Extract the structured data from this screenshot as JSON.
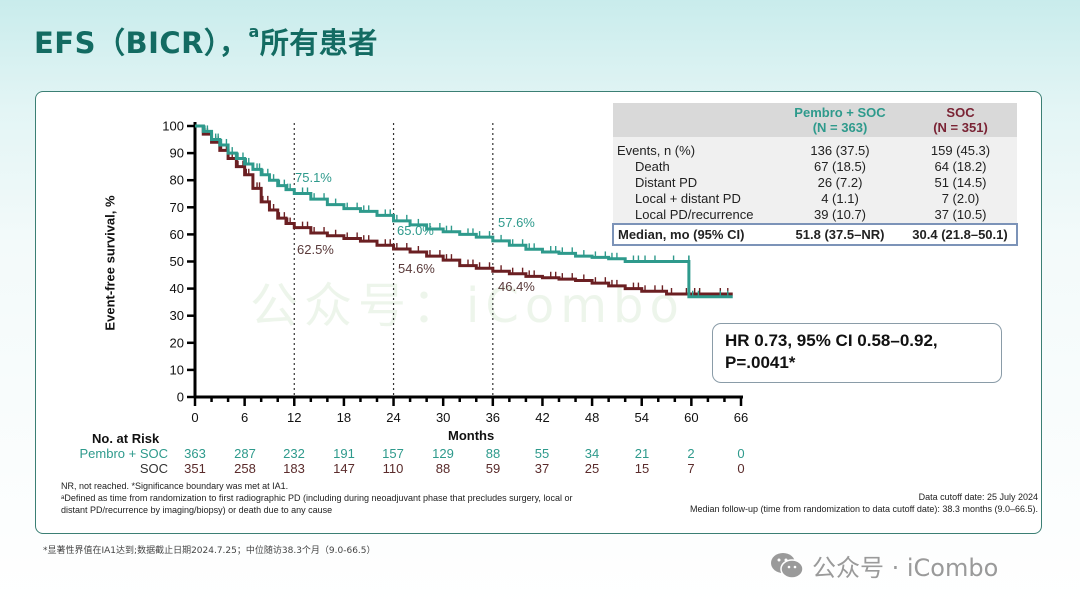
{
  "header": {
    "title_main": "EFS（BICR），",
    "title_sup": "a",
    "title_cn": "所有患者"
  },
  "colors": {
    "pembro": "#2e9a8c",
    "soc": "#6b1f22",
    "title": "#136b62",
    "panel_border": "#3b7f74"
  },
  "chart_data": {
    "type": "line",
    "subtype": "kaplan-meier",
    "title": "EFS (BICR), all patients",
    "xlabel": "Months",
    "ylabel": "Event-free survival, %",
    "xlim": [
      0,
      66
    ],
    "ylim": [
      0,
      100
    ],
    "x_ticks": [
      0,
      6,
      12,
      18,
      24,
      30,
      36,
      42,
      48,
      54,
      60,
      66
    ],
    "y_ticks": [
      0,
      10,
      20,
      30,
      40,
      50,
      60,
      70,
      80,
      90,
      100
    ],
    "reference_lines_x": [
      12,
      24,
      36
    ],
    "series": [
      {
        "name": "Pembro + SOC",
        "color": "#2e9a8c",
        "points": [
          [
            0,
            100
          ],
          [
            1,
            98
          ],
          [
            2,
            95
          ],
          [
            3,
            93
          ],
          [
            4,
            90
          ],
          [
            5,
            88
          ],
          [
            6,
            86
          ],
          [
            7,
            84
          ],
          [
            8,
            82
          ],
          [
            9,
            80
          ],
          [
            10,
            78
          ],
          [
            11,
            76.5
          ],
          [
            12,
            75.1
          ],
          [
            14,
            73
          ],
          [
            16,
            71
          ],
          [
            18,
            69.5
          ],
          [
            20,
            68.5
          ],
          [
            22,
            67
          ],
          [
            24,
            65.0
          ],
          [
            26,
            63.5
          ],
          [
            28,
            62
          ],
          [
            30,
            61
          ],
          [
            32,
            60
          ],
          [
            34,
            59
          ],
          [
            36,
            57.6
          ],
          [
            38,
            56
          ],
          [
            40,
            54.5
          ],
          [
            42,
            53.5
          ],
          [
            44,
            53
          ],
          [
            46,
            52
          ],
          [
            48,
            51.5
          ],
          [
            50,
            51
          ],
          [
            52,
            50
          ],
          [
            54,
            50
          ],
          [
            56,
            50
          ],
          [
            59.7,
            50
          ],
          [
            59.7,
            37
          ],
          [
            62,
            37
          ],
          [
            65,
            37
          ]
        ],
        "landmarks": [
          {
            "x": 12,
            "label": "75.1%"
          },
          {
            "x": 24,
            "label": "65.0%"
          },
          {
            "x": 36,
            "label": "57.6%"
          }
        ]
      },
      {
        "name": "SOC",
        "color": "#6b1f22",
        "points": [
          [
            0,
            100
          ],
          [
            1,
            97
          ],
          [
            2,
            94
          ],
          [
            3,
            91
          ],
          [
            4,
            88
          ],
          [
            5,
            85
          ],
          [
            6,
            82
          ],
          [
            7,
            77
          ],
          [
            8,
            72
          ],
          [
            9,
            69
          ],
          [
            10,
            66
          ],
          [
            11,
            64
          ],
          [
            12,
            62.5
          ],
          [
            14,
            60.5
          ],
          [
            16,
            59.5
          ],
          [
            18,
            58.5
          ],
          [
            20,
            57.5
          ],
          [
            22,
            56
          ],
          [
            24,
            54.6
          ],
          [
            26,
            53.5
          ],
          [
            28,
            52
          ],
          [
            30,
            50.5
          ],
          [
            32,
            48.5
          ],
          [
            34,
            47.5
          ],
          [
            36,
            46.4
          ],
          [
            38,
            45.5
          ],
          [
            40,
            44.5
          ],
          [
            42,
            44
          ],
          [
            44,
            43.5
          ],
          [
            46,
            43
          ],
          [
            48,
            42
          ],
          [
            50,
            41
          ],
          [
            52,
            40
          ],
          [
            54,
            39
          ],
          [
            56,
            39
          ],
          [
            57,
            38
          ],
          [
            60,
            38
          ],
          [
            62,
            38
          ],
          [
            65,
            38
          ]
        ],
        "landmarks": [
          {
            "x": 12,
            "label": "62.5%"
          },
          {
            "x": 24,
            "label": "54.6%"
          },
          {
            "x": 36,
            "label": "46.4%"
          }
        ]
      }
    ],
    "number_at_risk": {
      "title": "No. at Risk",
      "x": [
        0,
        6,
        12,
        18,
        24,
        30,
        36,
        42,
        48,
        54,
        60,
        66
      ],
      "rows": [
        {
          "label": "Pembro + SOC",
          "values": [
            363,
            287,
            232,
            191,
            157,
            129,
            88,
            55,
            34,
            21,
            2,
            0
          ]
        },
        {
          "label": "SOC",
          "values": [
            351,
            258,
            183,
            147,
            110,
            88,
            59,
            37,
            25,
            15,
            7,
            0
          ]
        }
      ]
    }
  },
  "axis": {
    "ylabel": "Event-free survival, %",
    "xlabel": "Months"
  },
  "landmarks": {
    "p12": "75.1%",
    "p24": "65.0%",
    "p36": "57.6%",
    "s12": "62.5%",
    "s24": "54.6%",
    "s36": "46.4%"
  },
  "risk": {
    "title": "No. at Risk",
    "pembro_label": "Pembro +  SOC",
    "soc_label": "SOC",
    "pembro": [
      "363",
      "287",
      "232",
      "191",
      "157",
      "129",
      "88",
      "55",
      "34",
      "21",
      "2",
      "0"
    ],
    "soc": [
      "351",
      "258",
      "183",
      "147",
      "110",
      "88",
      "59",
      "37",
      "25",
      "15",
      "7",
      "0"
    ]
  },
  "table": {
    "headers": {
      "pembro_line1": "Pembro + SOC",
      "pembro_line2": "(N = 363)",
      "soc_line1": "SOC",
      "soc_line2": "(N = 351)"
    },
    "rows": [
      {
        "label": "Events, n (%)",
        "pembro": "136 (37.5)",
        "soc": "159 (45.3)"
      },
      {
        "label": "Death",
        "pembro": "67 (18.5)",
        "soc": "64 (18.2)"
      },
      {
        "label": "Distant PD",
        "pembro": "26 (7.2)",
        "soc": "51 (14.5)"
      },
      {
        "label": "Local + distant PD",
        "pembro": "4 (1.1)",
        "soc": "7 (2.0)"
      },
      {
        "label": "Local PD/recurrence",
        "pembro": "39 (10.7)",
        "soc": "37 (10.5)"
      }
    ],
    "median": {
      "label": "Median, mo (95% CI)",
      "pembro": "51.8 (37.5–NR)",
      "soc": "30.4 (21.8–50.1)"
    }
  },
  "hr_box": {
    "line1": "HR 0.73, 95% CI 0.58–0.92,",
    "line2": "P=.0041*"
  },
  "footnotes": {
    "line1": "NR, not reached. *Significance boundary was met at IA1.",
    "line2": "ᵃDefined as time from randomization to first radiographic PD (including during neoadjuvant phase that precludes surgery, local or distant PD/recurrence by imaging/biopsy) or death due to any cause",
    "cutoff": "Data cutoff date: 25 July 2024",
    "followup": "Median follow-up (time from randomization to data cutoff date): 38.3 months (9.0–66.5)."
  },
  "cn_note": "*显著性界值在IA1达到;数据截止日期2024.7.25；中位随访38.3个月（9.0-66.5）",
  "watermark": {
    "center": "公众号：iCombo",
    "corner": "公众号 · iCombo",
    "icon": "wechat-icon"
  }
}
